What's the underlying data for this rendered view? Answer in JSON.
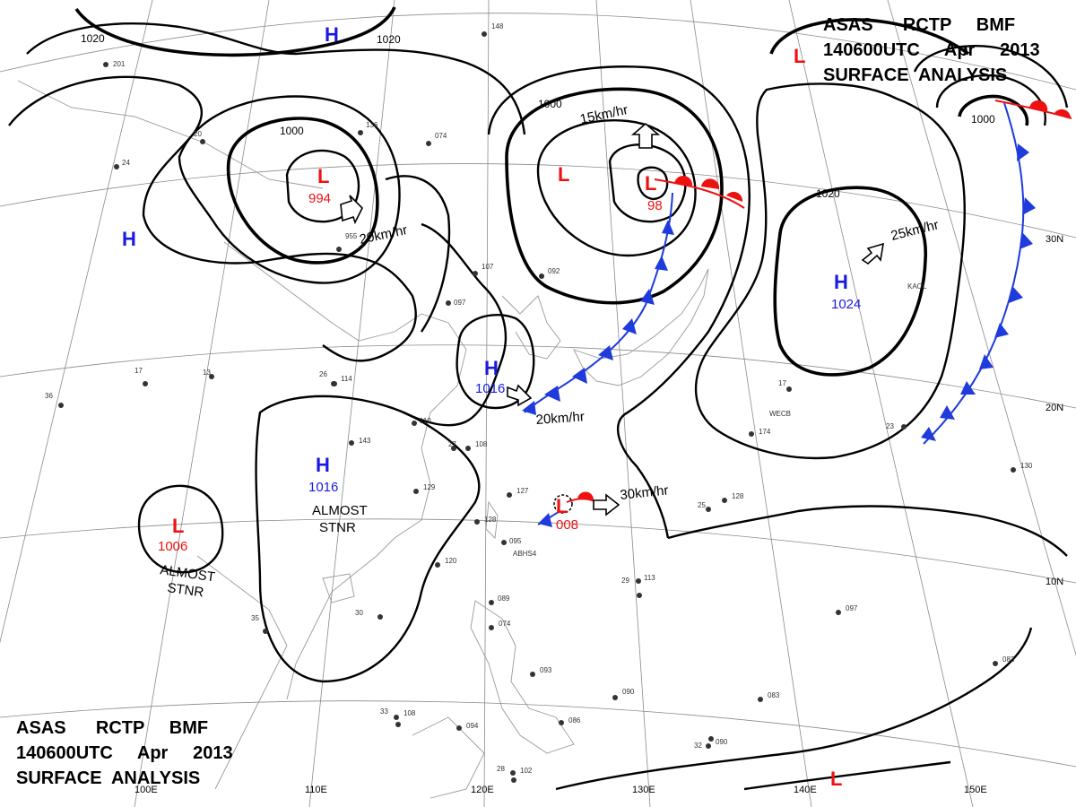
{
  "header_top": {
    "line1": "ASAS      RCTP     BMF",
    "line2": "140600UTC     Apr     2013",
    "line3": "SURFACE  ANALYSIS"
  },
  "header_bottom": {
    "line1": "ASAS      RCTP     BMF",
    "line2": "140600UTC     Apr     2013",
    "line3": "SURFACE  ANALYSIS"
  },
  "grid_labels": {
    "lat": [
      "30N",
      "20N",
      "10N"
    ],
    "lon": [
      "100E",
      "110E",
      "120E",
      "130E",
      "140E",
      "150E"
    ]
  },
  "isobar_labels": [
    "1020",
    "1020",
    "1000",
    "1000",
    "1020",
    "1000"
  ],
  "pressure_centers": [
    {
      "type": "H",
      "value": ""
    },
    {
      "type": "H",
      "value": ""
    },
    {
      "type": "L",
      "value": "994"
    },
    {
      "type": "L",
      "value": ""
    },
    {
      "type": "L",
      "value": "98"
    },
    {
      "type": "H",
      "value": "1024"
    },
    {
      "type": "H",
      "value": "1016"
    },
    {
      "type": "H",
      "value": "1016"
    },
    {
      "type": "L",
      "value": "1006"
    },
    {
      "type": "L",
      "value": "008"
    },
    {
      "type": "L",
      "value": ""
    },
    {
      "type": "L",
      "value": ""
    }
  ],
  "notes": [
    "ALMOST",
    "STNR",
    "ALMOST",
    "STNR"
  ],
  "movement_speeds": [
    "20km/hr",
    "15km/hr",
    "25km/hr",
    "20km/hr",
    "30km/hr"
  ],
  "stations": [
    "148",
    "201",
    "136",
    "074",
    "20",
    "955",
    "107",
    "092",
    "097",
    "110",
    "114",
    "143",
    "108",
    "129",
    "127",
    "128",
    "095",
    "120",
    "113",
    "089",
    "074",
    "093",
    "090",
    "086",
    "094",
    "108",
    "102",
    "090",
    "083",
    "097",
    "174",
    "128",
    "130",
    "083",
    "24",
    "13",
    "36",
    "17",
    "17",
    "23",
    "25",
    "35",
    "30",
    "29",
    "32",
    "33",
    "28",
    "27",
    "26"
  ],
  "station_ids": [
    "WECB",
    "KAOL",
    "ABHS4"
  ],
  "colors": {
    "high": "#1a1adf",
    "low": "#ee1111",
    "cold_front": "#1f3bdc",
    "warm_front": "#ee1111",
    "isobar": "#000000",
    "grid": "#8a8a8a"
  }
}
